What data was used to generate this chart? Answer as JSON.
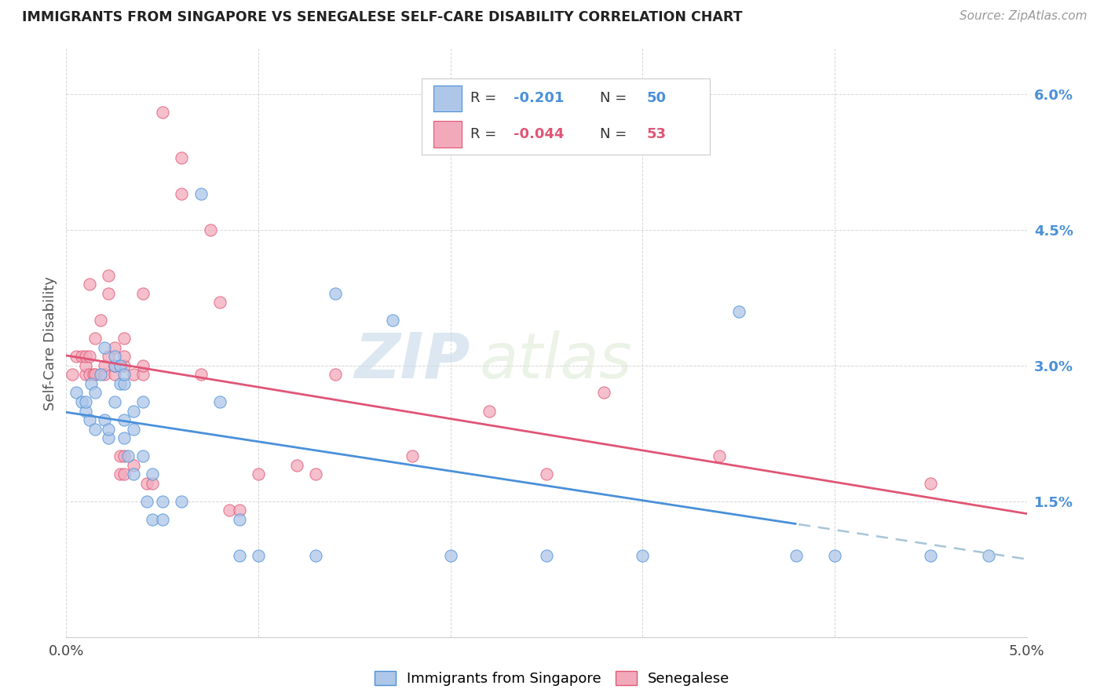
{
  "title": "IMMIGRANTS FROM SINGAPORE VS SENEGALESE SELF-CARE DISABILITY CORRELATION CHART",
  "source": "Source: ZipAtlas.com",
  "ylabel": "Self-Care Disability",
  "xlim": [
    0.0,
    0.05
  ],
  "ylim": [
    0.0,
    0.065
  ],
  "ytick_vals": [
    0.015,
    0.03,
    0.045,
    0.06
  ],
  "ytick_labels": [
    "1.5%",
    "3.0%",
    "4.5%",
    "6.0%"
  ],
  "singapore_color": "#aec6e8",
  "senegalese_color": "#f2aabb",
  "singapore_line_color": "#4a90d9",
  "senegalese_line_color": "#e05575",
  "trend_line_dash_color": "#a8c4d8",
  "legend_R1": "-0.201",
  "legend_N1": "50",
  "legend_R2": "-0.044",
  "legend_N2": "53",
  "watermark_zip": "ZIP",
  "watermark_atlas": "atlas",
  "singapore_points": [
    [
      0.0005,
      0.027
    ],
    [
      0.0008,
      0.026
    ],
    [
      0.001,
      0.025
    ],
    [
      0.001,
      0.026
    ],
    [
      0.0012,
      0.024
    ],
    [
      0.0013,
      0.028
    ],
    [
      0.0015,
      0.023
    ],
    [
      0.0015,
      0.027
    ],
    [
      0.0018,
      0.029
    ],
    [
      0.002,
      0.032
    ],
    [
      0.002,
      0.024
    ],
    [
      0.0022,
      0.022
    ],
    [
      0.0022,
      0.023
    ],
    [
      0.0025,
      0.026
    ],
    [
      0.0025,
      0.03
    ],
    [
      0.0025,
      0.031
    ],
    [
      0.0028,
      0.028
    ],
    [
      0.0028,
      0.03
    ],
    [
      0.003,
      0.022
    ],
    [
      0.003,
      0.024
    ],
    [
      0.003,
      0.028
    ],
    [
      0.003,
      0.029
    ],
    [
      0.0032,
      0.02
    ],
    [
      0.0035,
      0.018
    ],
    [
      0.0035,
      0.023
    ],
    [
      0.0035,
      0.025
    ],
    [
      0.004,
      0.02
    ],
    [
      0.004,
      0.026
    ],
    [
      0.0042,
      0.015
    ],
    [
      0.0045,
      0.013
    ],
    [
      0.0045,
      0.018
    ],
    [
      0.005,
      0.013
    ],
    [
      0.005,
      0.015
    ],
    [
      0.006,
      0.015
    ],
    [
      0.007,
      0.049
    ],
    [
      0.008,
      0.026
    ],
    [
      0.009,
      0.009
    ],
    [
      0.009,
      0.013
    ],
    [
      0.01,
      0.009
    ],
    [
      0.013,
      0.009
    ],
    [
      0.014,
      0.038
    ],
    [
      0.017,
      0.035
    ],
    [
      0.02,
      0.009
    ],
    [
      0.025,
      0.009
    ],
    [
      0.03,
      0.009
    ],
    [
      0.035,
      0.036
    ],
    [
      0.038,
      0.009
    ],
    [
      0.04,
      0.009
    ],
    [
      0.045,
      0.009
    ],
    [
      0.048,
      0.009
    ]
  ],
  "senegalese_points": [
    [
      0.0003,
      0.029
    ],
    [
      0.0005,
      0.031
    ],
    [
      0.0008,
      0.031
    ],
    [
      0.001,
      0.029
    ],
    [
      0.001,
      0.03
    ],
    [
      0.001,
      0.031
    ],
    [
      0.0012,
      0.029
    ],
    [
      0.0012,
      0.031
    ],
    [
      0.0012,
      0.039
    ],
    [
      0.0014,
      0.029
    ],
    [
      0.0015,
      0.029
    ],
    [
      0.0015,
      0.033
    ],
    [
      0.0018,
      0.035
    ],
    [
      0.002,
      0.029
    ],
    [
      0.002,
      0.03
    ],
    [
      0.0022,
      0.031
    ],
    [
      0.0022,
      0.038
    ],
    [
      0.0022,
      0.04
    ],
    [
      0.0025,
      0.029
    ],
    [
      0.0025,
      0.03
    ],
    [
      0.0025,
      0.032
    ],
    [
      0.0028,
      0.018
    ],
    [
      0.0028,
      0.02
    ],
    [
      0.003,
      0.018
    ],
    [
      0.003,
      0.02
    ],
    [
      0.003,
      0.03
    ],
    [
      0.003,
      0.031
    ],
    [
      0.003,
      0.033
    ],
    [
      0.0035,
      0.019
    ],
    [
      0.0035,
      0.029
    ],
    [
      0.004,
      0.029
    ],
    [
      0.004,
      0.03
    ],
    [
      0.004,
      0.038
    ],
    [
      0.0042,
      0.017
    ],
    [
      0.0045,
      0.017
    ],
    [
      0.005,
      0.058
    ],
    [
      0.006,
      0.049
    ],
    [
      0.006,
      0.053
    ],
    [
      0.007,
      0.029
    ],
    [
      0.0075,
      0.045
    ],
    [
      0.008,
      0.037
    ],
    [
      0.0085,
      0.014
    ],
    [
      0.009,
      0.014
    ],
    [
      0.01,
      0.018
    ],
    [
      0.012,
      0.019
    ],
    [
      0.013,
      0.018
    ],
    [
      0.014,
      0.029
    ],
    [
      0.018,
      0.02
    ],
    [
      0.022,
      0.025
    ],
    [
      0.025,
      0.018
    ],
    [
      0.028,
      0.027
    ],
    [
      0.034,
      0.02
    ],
    [
      0.045,
      0.017
    ]
  ]
}
